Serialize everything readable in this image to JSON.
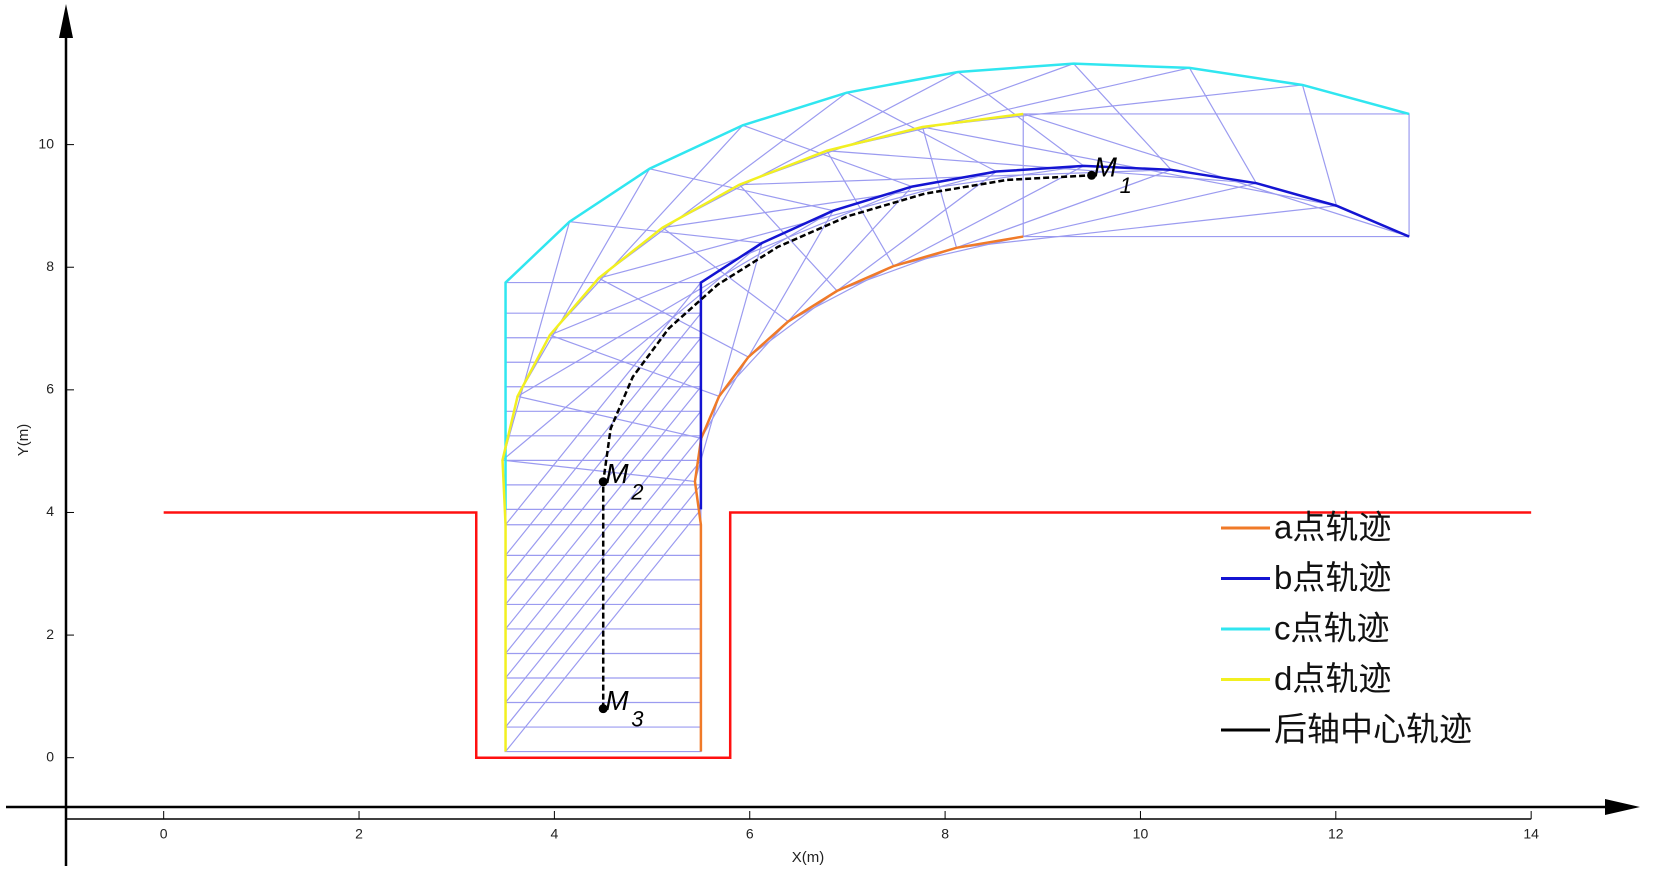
{
  "chart_data": {
    "type": "line",
    "x_label": "X(m)",
    "y_label": "Y(m)",
    "xlim": [
      -1,
      14.5
    ],
    "ylim": [
      -1,
      12
    ],
    "xticks": [
      0,
      2,
      4,
      6,
      8,
      10,
      12,
      14
    ],
    "yticks": [
      0,
      2,
      4,
      6,
      8,
      10
    ],
    "grid": false,
    "legend": "right",
    "outline_color": "#9b9bf0",
    "boundary": {
      "color": "#ff1010",
      "x": [
        0,
        3.2,
        3.2,
        5.8,
        5.8,
        14
      ],
      "y": [
        4,
        4,
        0,
        0,
        4,
        4
      ]
    },
    "series": [
      {
        "name": "a点轨迹",
        "color": "#f07a28",
        "x": [
          5.5,
          5.5,
          5.5,
          5.5,
          5.5,
          5.5,
          5.5,
          5.5,
          5.5,
          5.5,
          5.439,
          5.503,
          5.686,
          5.986,
          6.393,
          6.894,
          7.474,
          8.117,
          8.8
        ],
        "values": [
          0.1,
          0.5,
          0.9,
          1.3,
          1.7,
          2.1,
          2.5,
          2.9,
          3.3,
          3.8,
          4.505,
          5.21,
          5.894,
          6.535,
          7.114,
          7.614,
          8.02,
          8.317,
          8.5
        ]
      },
      {
        "name": "b点轨迹",
        "color": "#1414d2",
        "x": [
          5.5,
          5.5,
          5.5,
          5.5,
          5.5,
          5.5,
          5.5,
          5.5,
          5.5,
          5.5,
          6.125,
          6.854,
          7.661,
          8.525,
          9.419,
          10.315,
          11.186,
          12.007,
          12.75
        ],
        "values": [
          4.05,
          4.45,
          4.85,
          5.25,
          5.65,
          6.05,
          6.45,
          6.85,
          7.25,
          7.75,
          8.395,
          8.922,
          9.315,
          9.561,
          9.653,
          9.589,
          9.371,
          9.003,
          8.5
        ]
      },
      {
        "name": "c点轨迹",
        "color": "#30e6f0",
        "x": [
          3.5,
          3.5,
          3.5,
          3.5,
          3.5,
          3.5,
          3.5,
          3.5,
          3.5,
          3.5,
          4.155,
          4.974,
          5.929,
          6.993,
          8.133,
          9.315,
          10.502,
          11.659,
          12.75
        ],
        "values": [
          4.05,
          4.45,
          4.85,
          5.25,
          5.65,
          6.05,
          6.45,
          6.85,
          7.25,
          7.75,
          8.743,
          9.606,
          10.315,
          10.847,
          11.185,
          11.321,
          11.251,
          10.973,
          10.5
        ]
      },
      {
        "name": "d点轨迹",
        "color": "#f2f020",
        "x": [
          3.5,
          3.5,
          3.5,
          3.5,
          3.5,
          3.5,
          3.5,
          3.5,
          3.5,
          3.5,
          3.469,
          3.623,
          3.954,
          4.454,
          5.107,
          5.894,
          6.79,
          7.769,
          8.8
        ],
        "values": [
          0.1,
          0.5,
          0.9,
          1.3,
          1.7,
          2.1,
          2.5,
          2.9,
          3.3,
          3.8,
          4.853,
          5.894,
          6.894,
          7.821,
          8.646,
          9.346,
          9.9,
          10.287,
          10.5
        ]
      },
      {
        "name": "后轴中心轨迹",
        "color": "#000000",
        "x": [
          4.5,
          4.5,
          4.5,
          4.5,
          4.5,
          4.5,
          4.5,
          4.5,
          4.5,
          4.5,
          4.576,
          4.802,
          5.17,
          5.67,
          6.286,
          7.0,
          7.79,
          8.632,
          9.5
        ],
        "values": [
          0.8,
          1.2,
          1.6,
          2.0,
          2.4,
          2.8,
          3.2,
          3.6,
          4.0,
          4.5,
          5.368,
          6.21,
          7.0,
          7.714,
          8.33,
          8.83,
          9.199,
          9.424,
          9.5
        ]
      }
    ],
    "annotations": [
      {
        "text": "M",
        "sub": "1",
        "x": 9.5,
        "y": 9.5
      },
      {
        "text": "M",
        "sub": "2",
        "x": 4.5,
        "y": 4.5
      },
      {
        "text": "M",
        "sub": "3",
        "x": 4.5,
        "y": 0.8
      }
    ]
  }
}
